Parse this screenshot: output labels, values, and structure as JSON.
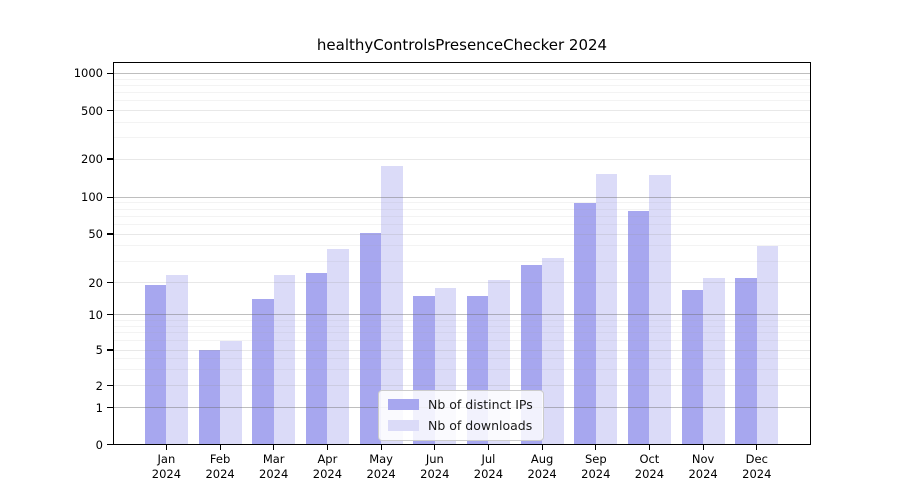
{
  "figure": {
    "title": "healthyControlsPresenceChecker 2024"
  },
  "chart_data": {
    "type": "bar",
    "title": "healthyControlsPresenceChecker 2024",
    "categories": [
      "Jan 2024",
      "Feb 2024",
      "Mar 2024",
      "Apr 2024",
      "May 2024",
      "Jun 2024",
      "Jul 2024",
      "Aug 2024",
      "Sep 2024",
      "Oct 2024",
      "Nov 2024",
      "Dec 2024"
    ],
    "x_tick_line1": [
      "Jan",
      "Feb",
      "Mar",
      "Apr",
      "May",
      "Jun",
      "Jul",
      "Aug",
      "Sep",
      "Oct",
      "Nov",
      "Dec"
    ],
    "x_tick_line2": [
      "2024",
      "2024",
      "2024",
      "2024",
      "2024",
      "2024",
      "2024",
      "2024",
      "2024",
      "2024",
      "2024",
      "2024"
    ],
    "series": [
      {
        "name": "Nb of distinct IPs",
        "color": "#a7a7ef",
        "values": [
          19,
          5,
          14,
          24,
          51,
          15,
          15,
          28,
          90,
          77,
          17,
          22
        ]
      },
      {
        "name": "Nb of downloads",
        "color": "#dbdbf8",
        "values": [
          23,
          6,
          23,
          38,
          175,
          18,
          21,
          32,
          152,
          150,
          22,
          40
        ]
      }
    ],
    "y_axis": {
      "scale": "log above 1, linear 0-1 (symlog-like)",
      "tick_labels": [
        "0",
        "1",
        "2",
        "5",
        "10",
        "20",
        "50",
        "100",
        "200",
        "500",
        "1000"
      ],
      "ticks": [
        0,
        1,
        2,
        5,
        10,
        20,
        50,
        100,
        200,
        500,
        1000
      ],
      "minor_gridlines": [
        3,
        4,
        6,
        7,
        8,
        9,
        30,
        40,
        60,
        70,
        80,
        90,
        300,
        400,
        600,
        700,
        800,
        900
      ],
      "ylim": [
        0,
        1300
      ]
    },
    "grid": true,
    "legend_position": "lower center"
  },
  "colors": {
    "ips_bar": "#a7a7ef",
    "downloads_bar": "#dbdbf8",
    "grid_power10": "rgba(110,110,110,0.45)",
    "grid_labeled": "rgba(150,150,150,0.22)",
    "grid_minor": "rgba(160,160,160,0.13)",
    "axis": "#000000",
    "background": "#ffffff"
  }
}
